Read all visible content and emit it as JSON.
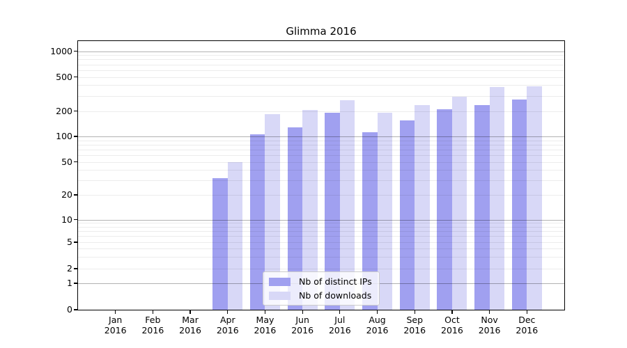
{
  "title": "Glimma 2016",
  "chart_data": {
    "type": "bar",
    "title": "Glimma 2016",
    "categories": [
      "Jan 2016",
      "Feb 2016",
      "Mar 2016",
      "Apr 2016",
      "May 2016",
      "Jun 2016",
      "Jul 2016",
      "Aug 2016",
      "Sep 2016",
      "Oct 2016",
      "Nov 2016",
      "Dec 2016"
    ],
    "month_labels": [
      "Jan",
      "Feb",
      "Mar",
      "Apr",
      "May",
      "Jun",
      "Jul",
      "Aug",
      "Sep",
      "Oct",
      "Nov",
      "Dec"
    ],
    "year_label": "2016",
    "series": [
      {
        "name": "Nb of distinct IPs",
        "color": "#a0a0f0",
        "values": [
          0,
          0,
          0,
          32,
          105,
          128,
          190,
          112,
          154,
          209,
          236,
          274
        ]
      },
      {
        "name": "Nb of downloads",
        "color": "#d8d8f7",
        "values": [
          0,
          0,
          0,
          50,
          186,
          208,
          266,
          192,
          235,
          295,
          380,
          388
        ]
      }
    ],
    "xlabel": "",
    "ylabel": "",
    "yscale": "symlog",
    "ylim": [
      0,
      1000
    ],
    "yticks": [
      1000,
      500,
      200,
      100,
      50,
      20,
      10,
      5,
      2,
      1,
      0
    ],
    "grid": "on",
    "legend_position": "bottom-center-inside"
  }
}
